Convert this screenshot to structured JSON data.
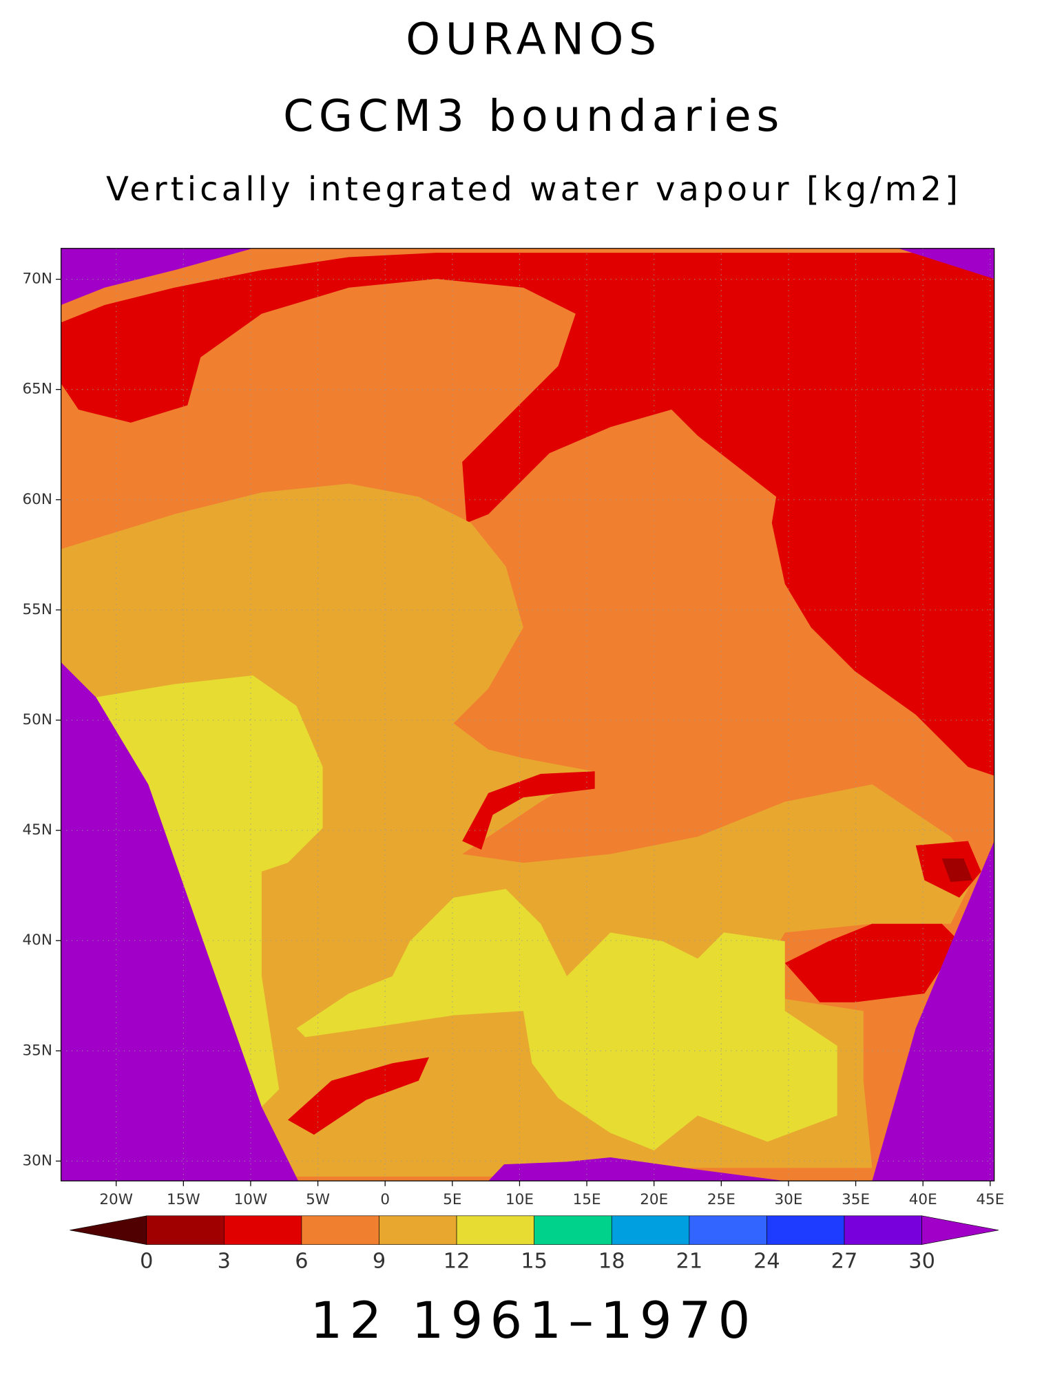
{
  "chart_data": {
    "type": "map",
    "title": "OURANOS",
    "subtitle": "CGCM3 boundaries",
    "variable": "Vertically integrated water vapour [kg/m2]",
    "caption": "12 1961–1970",
    "xlim": [
      -24.1,
      45.3
    ],
    "ylim": [
      29.1,
      71.4
    ],
    "xticks": [
      {
        "value": -20,
        "label": "20W"
      },
      {
        "value": -15,
        "label": "15W"
      },
      {
        "value": -10,
        "label": "10W"
      },
      {
        "value": -5,
        "label": "5W"
      },
      0,
      {
        "value": 5,
        "label": "5E"
      },
      {
        "value": 10,
        "label": "10E"
      },
      {
        "value": 15,
        "label": "15E"
      },
      {
        "value": 20,
        "label": "20E"
      },
      {
        "value": 25,
        "label": "25E"
      },
      {
        "value": 30,
        "label": "30E"
      },
      {
        "value": 35,
        "label": "35E"
      },
      {
        "value": 40,
        "label": "40E"
      },
      {
        "value": 45,
        "label": "45E"
      }
    ],
    "yticks": [
      {
        "value": 30,
        "label": "30N"
      },
      {
        "value": 35,
        "label": "35N"
      },
      {
        "value": 40,
        "label": "40N"
      },
      {
        "value": 45,
        "label": "45N"
      },
      {
        "value": 50,
        "label": "50N"
      },
      {
        "value": 55,
        "label": "55N"
      },
      {
        "value": 60,
        "label": "60N"
      },
      {
        "value": 65,
        "label": "65N"
      },
      {
        "value": 70,
        "label": "70N"
      }
    ],
    "grid": true,
    "colorbar": {
      "levels": [
        0,
        3,
        6,
        9,
        12,
        15,
        18,
        21,
        24,
        27,
        30
      ],
      "colors": [
        "#500000",
        "#a00000",
        "#e00000",
        "#f08030",
        "#e8a830",
        "#e6dc32",
        "#00d28c",
        "#00a0e0",
        "#3264ff",
        "#1e3cff",
        "#7800dc",
        "#a000c8"
      ]
    }
  }
}
